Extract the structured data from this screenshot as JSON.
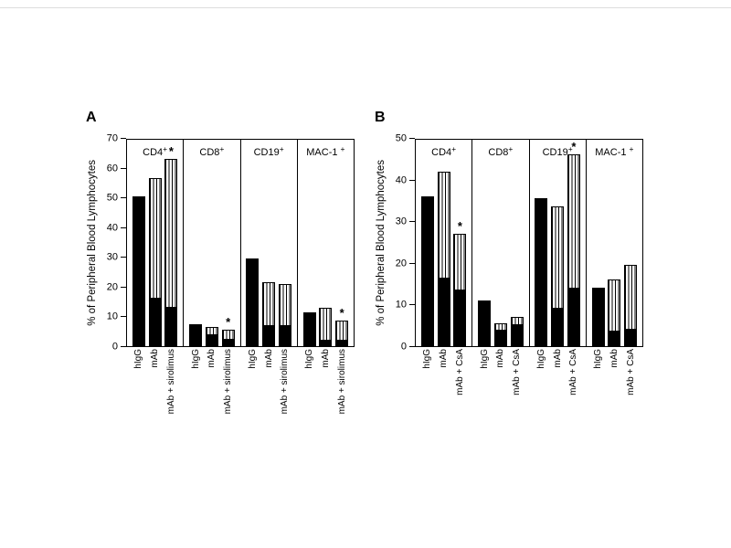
{
  "figure": {
    "background": "#ffffff",
    "bar_fill_black": "#000000",
    "bar_fill_striped": "black-vertical-stripes-on-white",
    "star_symbol": "*"
  },
  "chart_data": [
    {
      "type": "bar",
      "panel_label": "A",
      "title": "",
      "ylabel": "% of Peripheral Blood Lymphocytes",
      "ylim": [
        0,
        70
      ],
      "yticks": [
        0,
        10,
        20,
        30,
        40,
        50,
        60,
        70
      ],
      "bar_labels": [
        "hIgG",
        "mAb",
        "mAb + sirolimus"
      ],
      "stack_segments": [
        "black-solid-bottom",
        "vertical-striped-top"
      ],
      "grid": false,
      "legend": "none",
      "groups": [
        {
          "category": "CD4+",
          "bars": [
            {
              "x": "hIgG",
              "black": 50.5,
              "total": 50.5,
              "star": false
            },
            {
              "x": "mAb",
              "black": 16,
              "total": 56.5,
              "star": false
            },
            {
              "x": "mAb + sirolimus",
              "black": 13,
              "total": 63,
              "star": true
            }
          ]
        },
        {
          "category": "CD8+",
          "bars": [
            {
              "x": "hIgG",
              "black": 7.5,
              "total": 7.5,
              "star": false
            },
            {
              "x": "mAb",
              "black": 4,
              "total": 6.5,
              "star": false
            },
            {
              "x": "mAb + sirolimus",
              "black": 2.5,
              "total": 5.5,
              "star": true
            }
          ]
        },
        {
          "category": "CD19+",
          "bars": [
            {
              "x": "hIgG",
              "black": 29.5,
              "total": 29.5,
              "star": false
            },
            {
              "x": "mAb",
              "black": 7,
              "total": 21.5,
              "star": false
            },
            {
              "x": "mAb + sirolimus",
              "black": 7,
              "total": 21,
              "star": false
            }
          ]
        },
        {
          "category": "MAC-1 +",
          "bars": [
            {
              "x": "hIgG",
              "black": 11.5,
              "total": 11.5,
              "star": false
            },
            {
              "x": "mAb",
              "black": 2,
              "total": 13,
              "star": false
            },
            {
              "x": "mAb + sirolimus",
              "black": 2,
              "total": 8.5,
              "star": true
            }
          ]
        }
      ]
    },
    {
      "type": "bar",
      "panel_label": "B",
      "title": "",
      "ylabel": "% of Peripheral Blood Lymphocytes",
      "ylim": [
        0,
        50
      ],
      "yticks": [
        0,
        10,
        20,
        30,
        40,
        50
      ],
      "bar_labels": [
        "hIgG",
        "mAb",
        "mAb + CsA"
      ],
      "stack_segments": [
        "black-solid-bottom",
        "vertical-striped-top"
      ],
      "grid": false,
      "legend": "none",
      "groups": [
        {
          "category": "CD4+",
          "bars": [
            {
              "x": "hIgG",
              "black": 36,
              "total": 36,
              "star": false
            },
            {
              "x": "mAb",
              "black": 16.5,
              "total": 42,
              "star": false
            },
            {
              "x": "mAb + CsA",
              "black": 13.5,
              "total": 27,
              "star": true
            }
          ]
        },
        {
          "category": "CD8+",
          "bars": [
            {
              "x": "hIgG",
              "black": 11,
              "total": 11,
              "star": false
            },
            {
              "x": "mAb",
              "black": 4,
              "total": 5.5,
              "star": false
            },
            {
              "x": "mAb + CsA",
              "black": 5.5,
              "total": 7,
              "star": false
            }
          ]
        },
        {
          "category": "CD19+",
          "bars": [
            {
              "x": "hIgG",
              "black": 35.5,
              "total": 35.5,
              "star": false
            },
            {
              "x": "mAb",
              "black": 9,
              "total": 33.5,
              "star": false
            },
            {
              "x": "mAb + CsA",
              "black": 14,
              "total": 46,
              "star": true
            }
          ]
        },
        {
          "category": "MAC-1 +",
          "bars": [
            {
              "x": "hIgG",
              "black": 14,
              "total": 14,
              "star": false
            },
            {
              "x": "mAb",
              "black": 3.5,
              "total": 16,
              "star": false
            },
            {
              "x": "mAb + CsA",
              "black": 4,
              "total": 19.5,
              "star": false
            }
          ]
        }
      ]
    }
  ]
}
